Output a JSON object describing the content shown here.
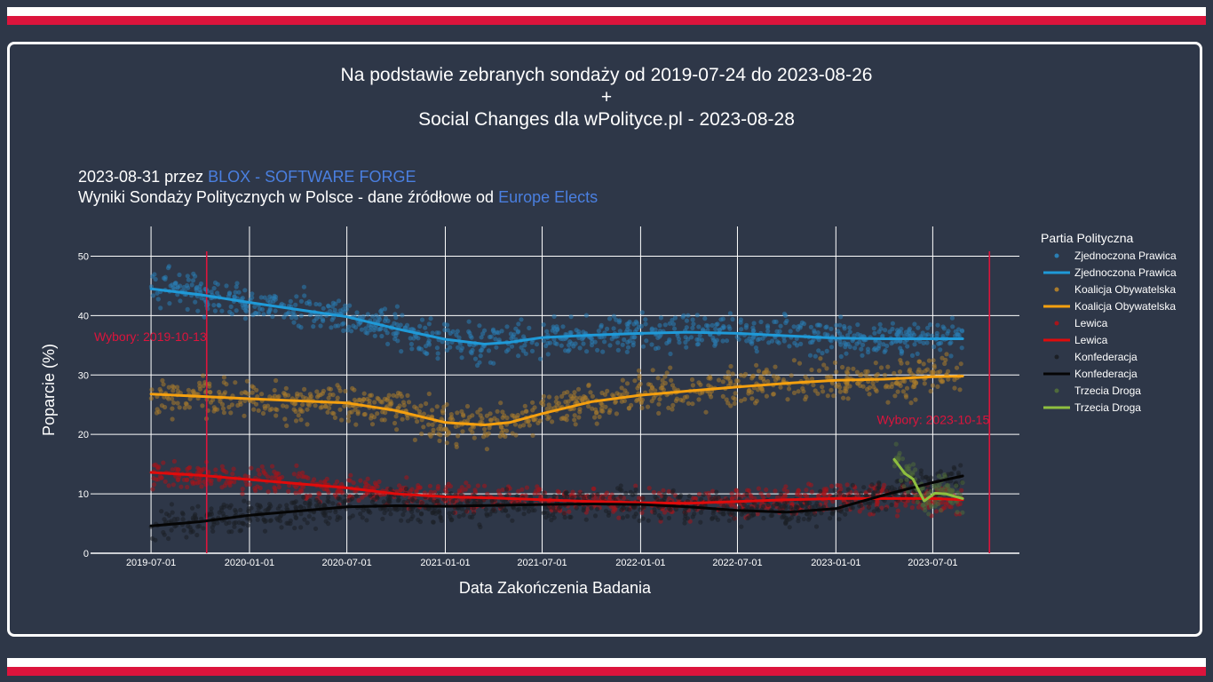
{
  "colors": {
    "background": "#2e3748",
    "flag_white": "#ffffff",
    "flag_red": "#dc143c",
    "grid": "#ffffff",
    "election_line": "#dc143c",
    "link": "#4a7fe0"
  },
  "header": {
    "title_line1": "Na podstawie zebranych sondaży od 2019-07-24 do 2023-08-26",
    "title_line2": "+",
    "title_line3": "Social Changes dla wPolityce.pl - 2023-08-28",
    "byline_prefix": "2023-08-31 przez ",
    "byline_link": "BLOX - SOFTWARE FORGE",
    "source_prefix": "Wyniki Sondaży Politycznych w Polsce - dane źródłowe od ",
    "source_link": "Europe Elects"
  },
  "chart_data": {
    "type": "scatter",
    "xlabel": "Data Zakończenia Badania",
    "ylabel": "Poparcie (%)",
    "xlim": [
      "2019-03-10",
      "2023-12-10"
    ],
    "ylim": [
      0,
      55
    ],
    "x_ticks": [
      "2019-07-01",
      "2020-01-01",
      "2020-07-01",
      "2021-01-01",
      "2021-07-01",
      "2022-01-01",
      "2022-07-01",
      "2023-01-01",
      "2023-07-01"
    ],
    "y_ticks": [
      0,
      10,
      20,
      30,
      40,
      50
    ],
    "grid": true,
    "legend_title": "Partia Polityczna",
    "legend_position": "right",
    "annotations": [
      {
        "date": "2019-10-13",
        "label": "Wybory: 2019-10-13",
        "y": 36.5
      },
      {
        "date": "2023-10-15",
        "label": "Wybory: 2023-10-15",
        "y": 22.5
      }
    ],
    "series": [
      {
        "name": "Zjednoczona Prawica",
        "color": "#1f9ad8",
        "dot_color": "#2a7eb4",
        "trend": [
          [
            "2019-07-01",
            44.5
          ],
          [
            "2019-10-01",
            43.5
          ],
          [
            "2020-01-01",
            42.2
          ],
          [
            "2020-07-01",
            39.8
          ],
          [
            "2020-10-01",
            37.8
          ],
          [
            "2021-01-01",
            36.0
          ],
          [
            "2021-03-15",
            35.2
          ],
          [
            "2021-05-01",
            35.5
          ],
          [
            "2021-07-01",
            36.3
          ],
          [
            "2021-10-01",
            36.7
          ],
          [
            "2022-01-01",
            37.0
          ],
          [
            "2022-04-01",
            37.2
          ],
          [
            "2022-07-01",
            37.0
          ],
          [
            "2022-10-01",
            36.6
          ],
          [
            "2023-01-01",
            36.2
          ],
          [
            "2023-04-01",
            36.1
          ],
          [
            "2023-07-01",
            36.1
          ],
          [
            "2023-08-26",
            36.1
          ]
        ],
        "spread": 2.6
      },
      {
        "name": "Koalicja Obywatelska",
        "color": "#f5a00f",
        "dot_color": "#a97b2c",
        "trend": [
          [
            "2019-07-01",
            26.8
          ],
          [
            "2019-10-01",
            26.4
          ],
          [
            "2020-01-01",
            26.0
          ],
          [
            "2020-07-01",
            25.3
          ],
          [
            "2020-10-01",
            24.0
          ],
          [
            "2021-01-01",
            22.0
          ],
          [
            "2021-03-15",
            21.6
          ],
          [
            "2021-05-01",
            22.0
          ],
          [
            "2021-07-01",
            23.5
          ],
          [
            "2021-10-01",
            25.5
          ],
          [
            "2022-01-01",
            26.6
          ],
          [
            "2022-04-01",
            27.3
          ],
          [
            "2022-07-01",
            28.0
          ],
          [
            "2022-10-01",
            28.6
          ],
          [
            "2023-01-01",
            29.1
          ],
          [
            "2023-04-01",
            29.3
          ],
          [
            "2023-07-01",
            29.7
          ],
          [
            "2023-08-26",
            29.8
          ]
        ],
        "spread": 2.8
      },
      {
        "name": "Lewica",
        "color": "#e00b0b",
        "dot_color": "#a8141a",
        "trend": [
          [
            "2019-07-01",
            13.6
          ],
          [
            "2019-10-01",
            13.1
          ],
          [
            "2020-01-01",
            12.4
          ],
          [
            "2020-07-01",
            11.0
          ],
          [
            "2020-10-01",
            10.0
          ],
          [
            "2021-01-01",
            9.5
          ],
          [
            "2021-04-01",
            9.3
          ],
          [
            "2021-07-01",
            9.0
          ],
          [
            "2021-10-01",
            8.7
          ],
          [
            "2022-01-01",
            8.5
          ],
          [
            "2022-04-01",
            8.4
          ],
          [
            "2022-07-01",
            8.7
          ],
          [
            "2022-10-01",
            9.0
          ],
          [
            "2023-01-01",
            9.2
          ],
          [
            "2023-04-01",
            9.2
          ],
          [
            "2023-07-01",
            9.2
          ],
          [
            "2023-08-26",
            9.0
          ]
        ],
        "spread": 2.0
      },
      {
        "name": "Konfederacja",
        "color": "#050505",
        "dot_color": "#1c1f25",
        "trend": [
          [
            "2019-07-01",
            4.6
          ],
          [
            "2019-10-01",
            5.3
          ],
          [
            "2020-01-01",
            6.4
          ],
          [
            "2020-07-01",
            7.8
          ],
          [
            "2020-10-01",
            8.0
          ],
          [
            "2021-01-01",
            7.9
          ],
          [
            "2021-07-01",
            8.2
          ],
          [
            "2021-10-01",
            8.3
          ],
          [
            "2022-01-01",
            8.2
          ],
          [
            "2022-04-01",
            7.8
          ],
          [
            "2022-07-01",
            7.2
          ],
          [
            "2022-10-01",
            6.9
          ],
          [
            "2023-01-01",
            7.5
          ],
          [
            "2023-04-01",
            9.8
          ],
          [
            "2023-07-01",
            11.9
          ],
          [
            "2023-08-26",
            13.0
          ]
        ],
        "spread": 2.2
      },
      {
        "name": "Trzecia Droga",
        "color": "#8fbf3f",
        "dot_color": "#4f6a3b",
        "trend": [
          [
            "2023-04-20",
            15.8
          ],
          [
            "2023-05-10",
            13.4
          ],
          [
            "2023-05-25",
            12.5
          ],
          [
            "2023-06-15",
            8.8
          ],
          [
            "2023-07-05",
            10.1
          ],
          [
            "2023-07-25",
            10.0
          ],
          [
            "2023-08-26",
            9.2
          ]
        ],
        "spread": 2.2
      }
    ]
  }
}
